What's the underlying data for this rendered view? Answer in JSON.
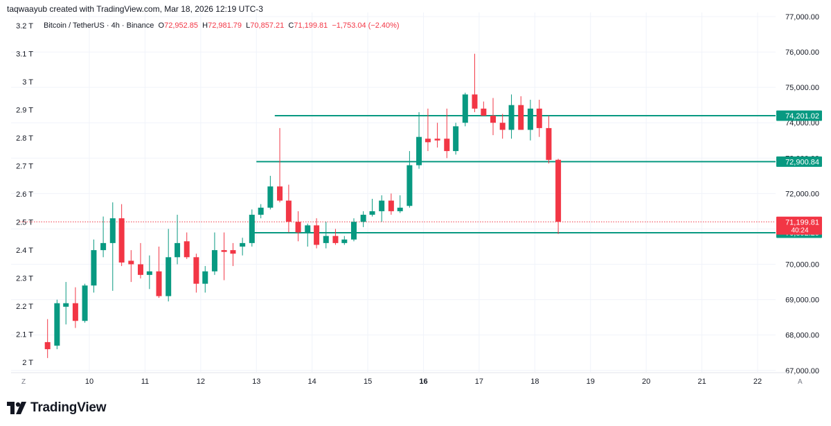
{
  "header": {
    "attribution": "taqwaayub created with TradingView.com, Mar 18, 2026 12:19 UTC-3"
  },
  "legend": {
    "symbol": "Bitcoin / TetherUS · 4h · Binance",
    "o_label": "O",
    "o_value": "72,952.85",
    "h_label": "H",
    "h_value": "72,981.79",
    "l_label": "L",
    "l_value": "70,857.21",
    "c_label": "C",
    "c_value": "71,199.81",
    "change": "−1,753.04 (−2.40%)"
  },
  "colors": {
    "up": "#089981",
    "down": "#f23645",
    "line": "#089981",
    "grid": "#f0f3fa",
    "text": "#131722"
  },
  "corner_labels": {
    "left": "Z",
    "right": "A"
  },
  "footer": {
    "brand": "TradingView"
  },
  "chart_data": {
    "type": "candlestick",
    "interval": "4h",
    "price_axis": {
      "side": "right",
      "ylim": [
        66500,
        77000
      ],
      "ticks": [
        67000,
        68000,
        69000,
        70000,
        71000,
        72000,
        73000,
        74000,
        75000,
        76000,
        77000
      ],
      "tick_labels": [
        "67,000.00",
        "68,000.00",
        "69,000.00",
        "70,000.00",
        "71,000.00",
        "72,000.00",
        "73,000.00",
        "74,000.00",
        "75,000.00",
        "76,000.00",
        "77,000.00"
      ]
    },
    "volume_axis": {
      "side": "left",
      "ylim": [
        1.98,
        3.22
      ],
      "ticks": [
        2.0,
        2.1,
        2.2,
        2.3,
        2.4,
        2.5,
        2.6,
        2.7,
        2.8,
        2.9,
        3.0,
        3.1,
        3.2
      ],
      "tick_labels": [
        "2 T",
        "2.1 T",
        "2.2 T",
        "2.3 T",
        "2.4 T",
        "2.5 T",
        "2.6 T",
        "2.7 T",
        "2.8 T",
        "2.9 T",
        "3 T",
        "3.1 T",
        "3.2 T"
      ]
    },
    "x_axis": {
      "xlim": [
        9.0,
        22.5
      ],
      "ticks": [
        10,
        11,
        12,
        13,
        14,
        15,
        16,
        17,
        18,
        19,
        20,
        21,
        22
      ],
      "tick_labels": [
        "10",
        "11",
        "12",
        "13",
        "14",
        "15",
        "16",
        "17",
        "18",
        "19",
        "20",
        "21",
        "22"
      ],
      "bold_tick": "16"
    },
    "grid": true,
    "candles": [
      {
        "t": 9.25,
        "o": 67800,
        "h": 68450,
        "l": 67350,
        "c": 67600
      },
      {
        "t": 9.42,
        "o": 67700,
        "h": 69000,
        "l": 67600,
        "c": 68900
      },
      {
        "t": 9.58,
        "o": 68800,
        "h": 69500,
        "l": 68300,
        "c": 68900
      },
      {
        "t": 9.75,
        "o": 68900,
        "h": 69350,
        "l": 68200,
        "c": 68400
      },
      {
        "t": 9.92,
        "o": 68400,
        "h": 69450,
        "l": 68350,
        "c": 69400
      },
      {
        "t": 10.08,
        "o": 69400,
        "h": 70700,
        "l": 69200,
        "c": 70400
      },
      {
        "t": 10.25,
        "o": 70400,
        "h": 71350,
        "l": 70200,
        "c": 70600
      },
      {
        "t": 10.42,
        "o": 70600,
        "h": 71750,
        "l": 69250,
        "c": 71300
      },
      {
        "t": 10.58,
        "o": 71300,
        "h": 71700,
        "l": 69950,
        "c": 70050
      },
      {
        "t": 10.75,
        "o": 70100,
        "h": 70400,
        "l": 69500,
        "c": 70000
      },
      {
        "t": 10.92,
        "o": 70000,
        "h": 70600,
        "l": 69600,
        "c": 69700
      },
      {
        "t": 11.08,
        "o": 69700,
        "h": 70250,
        "l": 69300,
        "c": 69800
      },
      {
        "t": 11.25,
        "o": 69800,
        "h": 70500,
        "l": 69050,
        "c": 69100
      },
      {
        "t": 11.42,
        "o": 69100,
        "h": 71000,
        "l": 68950,
        "c": 70200
      },
      {
        "t": 11.58,
        "o": 70200,
        "h": 71400,
        "l": 70000,
        "c": 70600
      },
      {
        "t": 11.75,
        "o": 70650,
        "h": 70900,
        "l": 70150,
        "c": 70200
      },
      {
        "t": 11.92,
        "o": 70200,
        "h": 70300,
        "l": 69200,
        "c": 69450
      },
      {
        "t": 12.08,
        "o": 69450,
        "h": 69950,
        "l": 69200,
        "c": 69800
      },
      {
        "t": 12.25,
        "o": 69800,
        "h": 70900,
        "l": 69700,
        "c": 70400
      },
      {
        "t": 12.42,
        "o": 70400,
        "h": 70900,
        "l": 69550,
        "c": 70350
      },
      {
        "t": 12.58,
        "o": 70400,
        "h": 70600,
        "l": 69950,
        "c": 70300
      },
      {
        "t": 12.75,
        "o": 70500,
        "h": 70750,
        "l": 70250,
        "c": 70600
      },
      {
        "t": 12.92,
        "o": 70600,
        "h": 71550,
        "l": 70500,
        "c": 71400
      },
      {
        "t": 13.08,
        "o": 71400,
        "h": 71700,
        "l": 71300,
        "c": 71600
      },
      {
        "t": 13.25,
        "o": 71600,
        "h": 72500,
        "l": 71550,
        "c": 72200
      },
      {
        "t": 13.42,
        "o": 72200,
        "h": 73850,
        "l": 71750,
        "c": 71800
      },
      {
        "t": 13.58,
        "o": 71800,
        "h": 72250,
        "l": 70900,
        "c": 71200
      },
      {
        "t": 13.75,
        "o": 71200,
        "h": 71500,
        "l": 70650,
        "c": 70900
      },
      {
        "t": 13.92,
        "o": 70900,
        "h": 71150,
        "l": 70500,
        "c": 71100
      },
      {
        "t": 14.08,
        "o": 71100,
        "h": 71300,
        "l": 70450,
        "c": 70550
      },
      {
        "t": 14.25,
        "o": 70600,
        "h": 71200,
        "l": 70450,
        "c": 70800
      },
      {
        "t": 14.42,
        "o": 70800,
        "h": 71000,
        "l": 70550,
        "c": 70600
      },
      {
        "t": 14.58,
        "o": 70600,
        "h": 70800,
        "l": 70550,
        "c": 70700
      },
      {
        "t": 14.75,
        "o": 70700,
        "h": 71300,
        "l": 70650,
        "c": 71200
      },
      {
        "t": 14.92,
        "o": 71200,
        "h": 71500,
        "l": 71050,
        "c": 71400
      },
      {
        "t": 15.08,
        "o": 71400,
        "h": 71850,
        "l": 71350,
        "c": 71500
      },
      {
        "t": 15.25,
        "o": 71500,
        "h": 71950,
        "l": 71200,
        "c": 71800
      },
      {
        "t": 15.42,
        "o": 71800,
        "h": 72000,
        "l": 71400,
        "c": 71500
      },
      {
        "t": 15.58,
        "o": 71500,
        "h": 71950,
        "l": 71450,
        "c": 71600
      },
      {
        "t": 15.75,
        "o": 71650,
        "h": 73200,
        "l": 71600,
        "c": 72800
      },
      {
        "t": 15.92,
        "o": 72800,
        "h": 74300,
        "l": 72700,
        "c": 73600
      },
      {
        "t": 16.08,
        "o": 73550,
        "h": 74400,
        "l": 73200,
        "c": 73450
      },
      {
        "t": 16.25,
        "o": 73550,
        "h": 74000,
        "l": 73300,
        "c": 73500
      },
      {
        "t": 16.42,
        "o": 73550,
        "h": 74400,
        "l": 73000,
        "c": 73200
      },
      {
        "t": 16.58,
        "o": 73200,
        "h": 74000,
        "l": 73100,
        "c": 73900
      },
      {
        "t": 16.75,
        "o": 74000,
        "h": 74850,
        "l": 73900,
        "c": 74800
      },
      {
        "t": 16.92,
        "o": 74800,
        "h": 75950,
        "l": 74300,
        "c": 74400
      },
      {
        "t": 17.08,
        "o": 74400,
        "h": 74600,
        "l": 74200,
        "c": 74200
      },
      {
        "t": 17.25,
        "o": 74200,
        "h": 74700,
        "l": 73650,
        "c": 74000
      },
      {
        "t": 17.42,
        "o": 74000,
        "h": 74250,
        "l": 73550,
        "c": 73800
      },
      {
        "t": 17.58,
        "o": 73800,
        "h": 74800,
        "l": 73550,
        "c": 74500
      },
      {
        "t": 17.75,
        "o": 74500,
        "h": 74750,
        "l": 73800,
        "c": 73800
      },
      {
        "t": 17.92,
        "o": 73800,
        "h": 74650,
        "l": 73500,
        "c": 74400
      },
      {
        "t": 18.08,
        "o": 74400,
        "h": 74650,
        "l": 73600,
        "c": 73850
      },
      {
        "t": 18.25,
        "o": 73850,
        "h": 74200,
        "l": 72850,
        "c": 72950
      },
      {
        "t": 18.42,
        "o": 72952.85,
        "h": 72981.79,
        "l": 70857.21,
        "c": 71199.81
      }
    ],
    "horizontal_lines": [
      {
        "price": 74201.02,
        "label": "74,201.02",
        "x_start": 13.33
      },
      {
        "price": 72900.84,
        "label": "72,900.84",
        "x_start": 13.0
      },
      {
        "price": 70892.29,
        "label": "70,892.29",
        "x_start": 12.92
      }
    ],
    "last_price": {
      "price": 71199.81,
      "label": "71,199.81",
      "countdown": "40:24"
    }
  }
}
